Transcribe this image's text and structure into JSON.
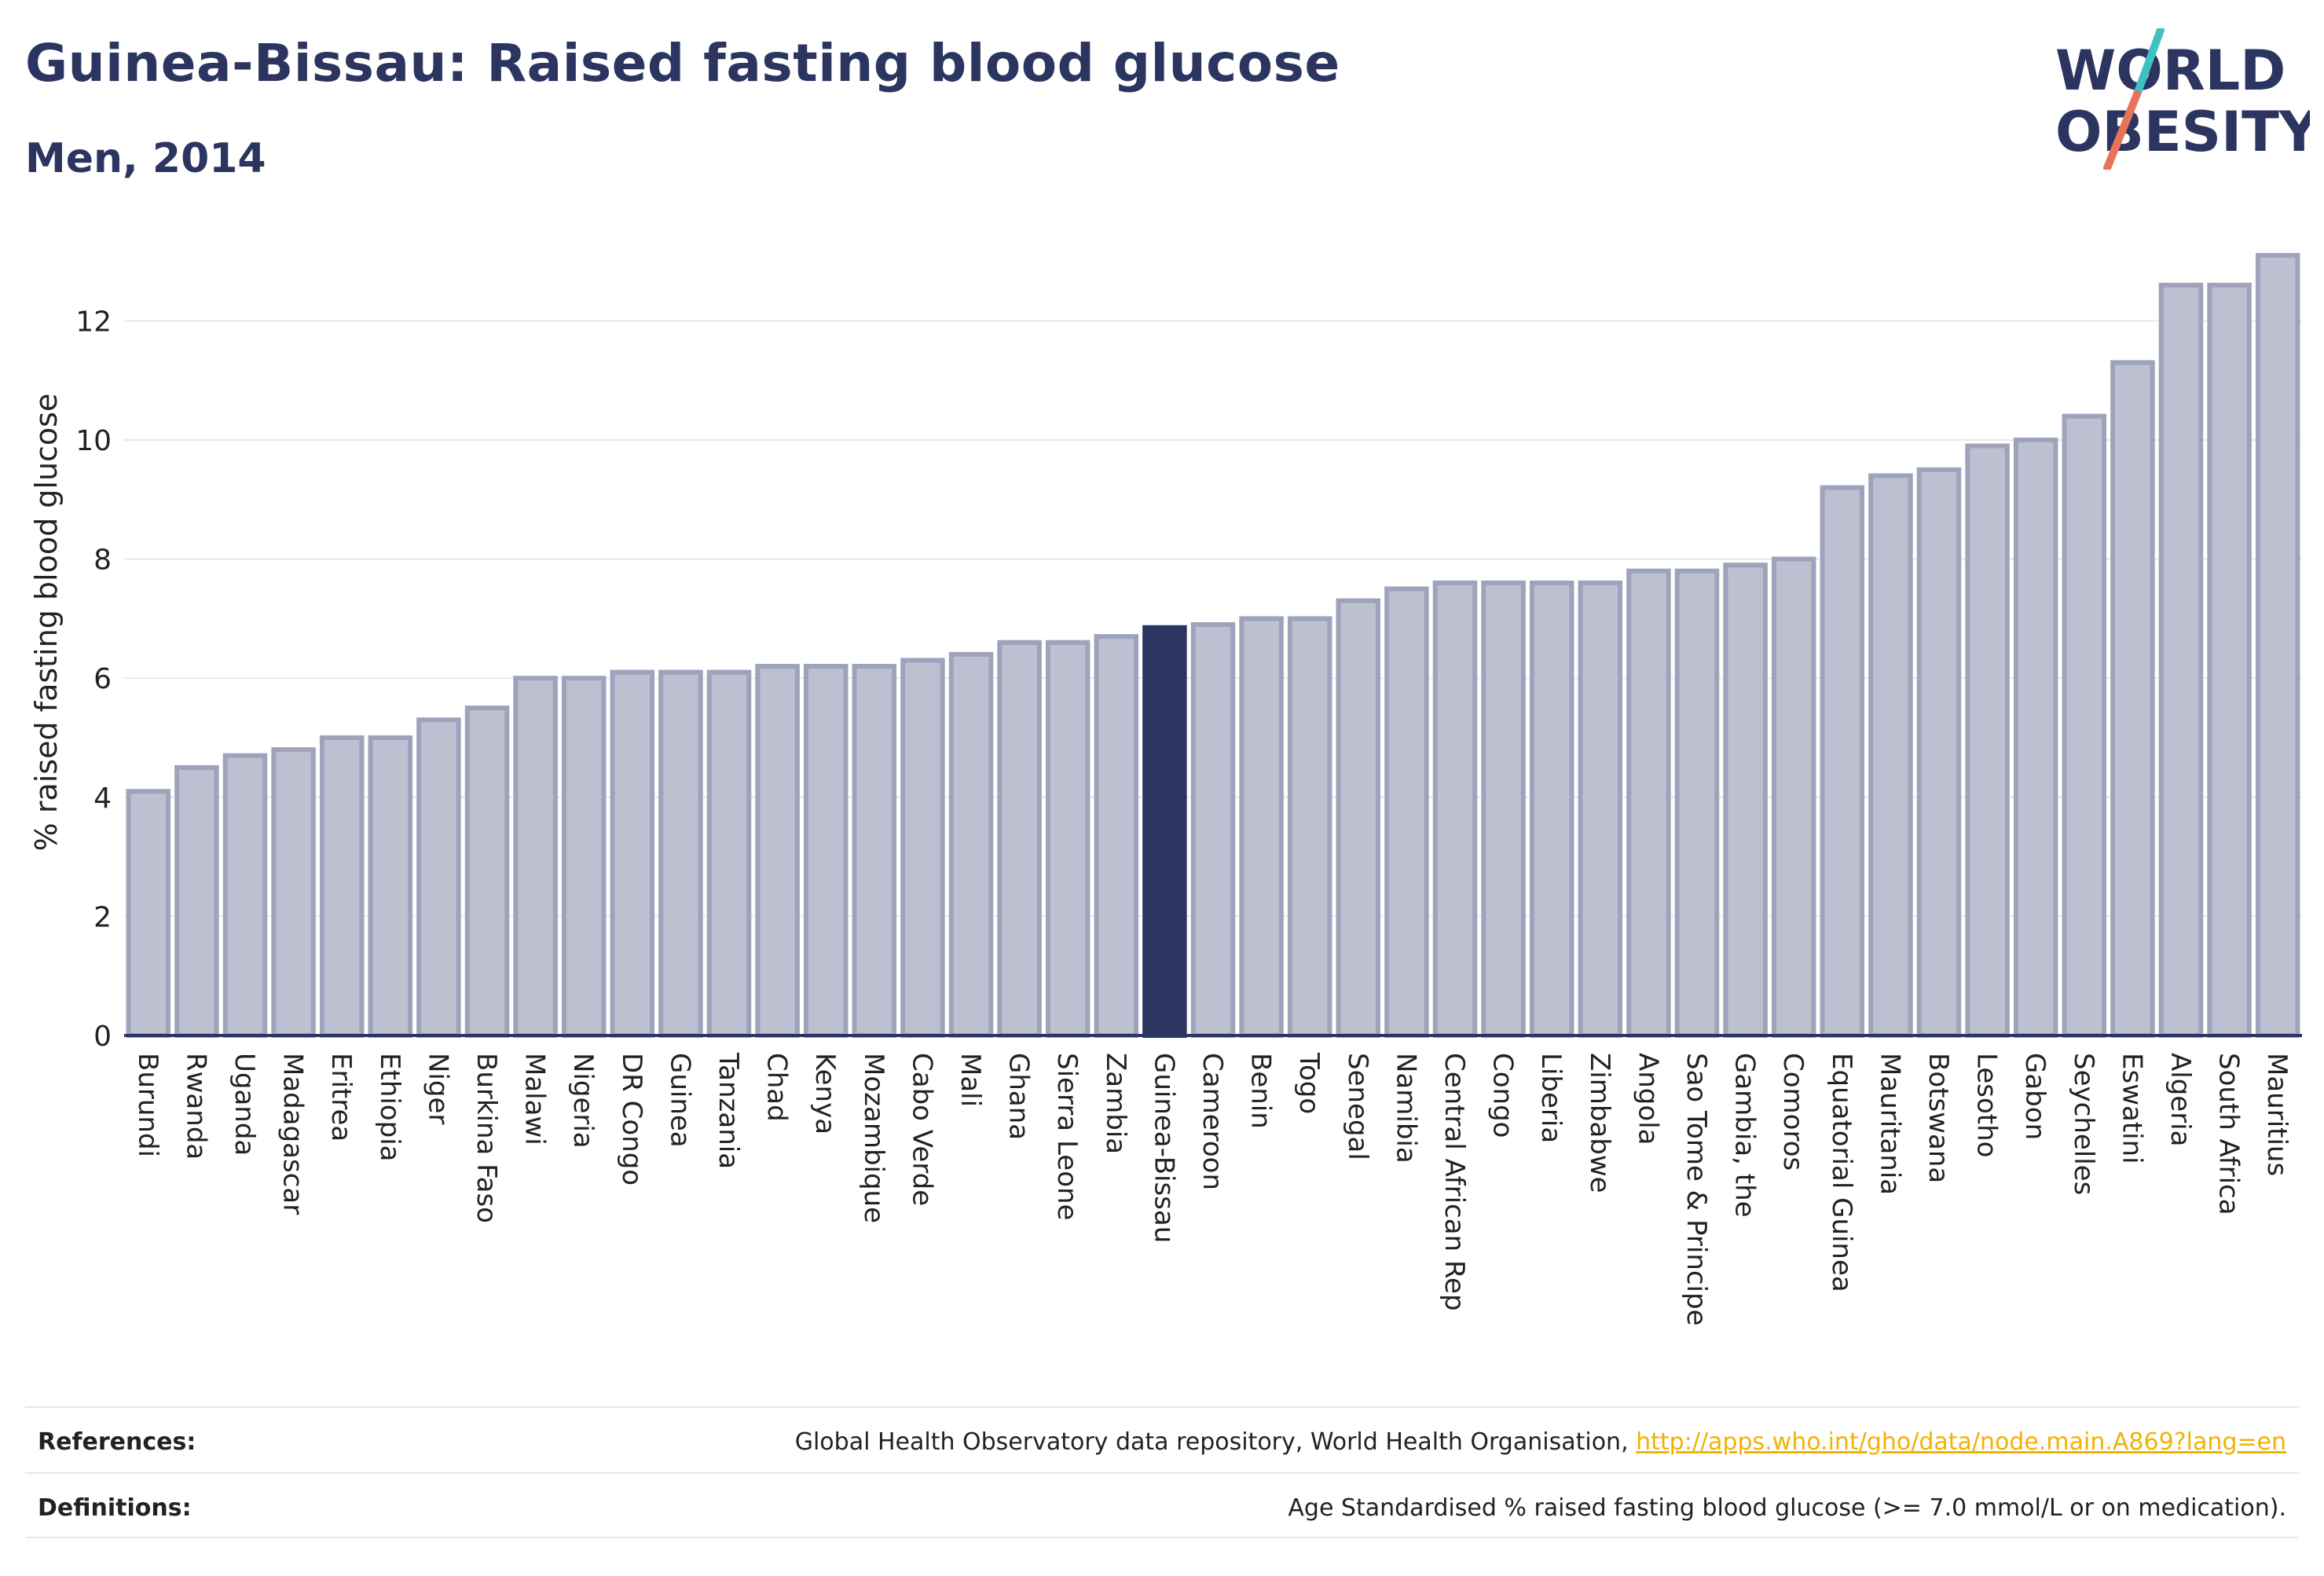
{
  "title": "Guinea-Bissau: Raised fasting blood glucose",
  "subtitle": "Men, 2014",
  "logo": {
    "line1": "WORLD",
    "line2": "OBESITY",
    "slash_colors": [
      "#3fc1c0",
      "#e8735b"
    ]
  },
  "colors": {
    "bar_fill": "#bcc0d1",
    "bar_stroke": "#9ea3bb",
    "highlight": "#2b3560",
    "grid": "#e6e8ef",
    "axis": "#2b3560"
  },
  "chart_data": {
    "type": "bar",
    "title": "Guinea-Bissau: Raised fasting blood glucose",
    "subtitle": "Men, 2014",
    "xlabel": "",
    "ylabel": "% raised fasting blood glucose",
    "ylim": [
      0,
      13.1
    ],
    "yticks": [
      0,
      2,
      4,
      6,
      8,
      10,
      12
    ],
    "grid": true,
    "highlight": "Guinea-Bissau",
    "categories": [
      "Burundi",
      "Rwanda",
      "Uganda",
      "Madagascar",
      "Eritrea",
      "Ethiopia",
      "Niger",
      "Burkina Faso",
      "Malawi",
      "Nigeria",
      "DR Congo",
      "Guinea",
      "Tanzania",
      "Chad",
      "Kenya",
      "Mozambique",
      "Cabo Verde",
      "Mali",
      "Ghana",
      "Sierra Leone",
      "Zambia",
      "Guinea-Bissau",
      "Cameroon",
      "Benin",
      "Togo",
      "Senegal",
      "Namibia",
      "Central African Rep",
      "Congo",
      "Liberia",
      "Zimbabwe",
      "Angola",
      "Sao Tome & Principe",
      "Gambia, the",
      "Comoros",
      "Equatorial Guinea",
      "Mauritania",
      "Botswana",
      "Lesotho",
      "Gabon",
      "Seychelles",
      "Eswatini",
      "Algeria",
      "South Africa",
      "Mauritius"
    ],
    "values": [
      4.1,
      4.5,
      4.7,
      4.8,
      5.0,
      5.0,
      5.3,
      5.5,
      6.0,
      6.0,
      6.1,
      6.1,
      6.1,
      6.2,
      6.2,
      6.2,
      6.3,
      6.4,
      6.6,
      6.6,
      6.7,
      6.85,
      6.9,
      7.0,
      7.0,
      7.3,
      7.5,
      7.6,
      7.6,
      7.6,
      7.6,
      7.8,
      7.8,
      7.9,
      8.0,
      9.2,
      9.4,
      9.5,
      9.9,
      10.0,
      10.4,
      11.3,
      12.6,
      12.6,
      13.1
    ]
  },
  "footer": {
    "references_label": "References:",
    "references_text": "Global Health Observatory data repository, World Health Organisation, ",
    "references_link": "http://apps.who.int/gho/data/node.main.A869?lang=en",
    "definitions_label": "Definitions:",
    "definitions_text": "Age Standardised % raised fasting blood glucose (>= 7.0 mmol/L or on medication)."
  }
}
